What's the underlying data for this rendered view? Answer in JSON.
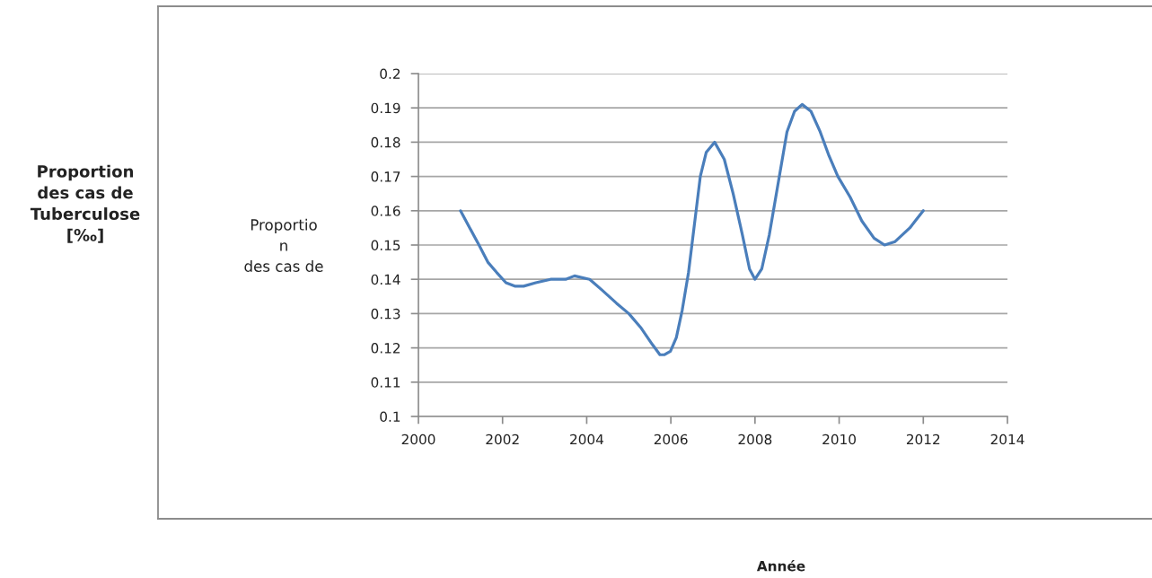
{
  "chart_data": {
    "type": "line",
    "ylabel": "Proportio\nn\ndes cas de",
    "annotations": [
      "Proportion\ndes cas de\nTuberculose\n[‰]",
      "Année"
    ],
    "series": [
      {
        "color": "#4a7ebb",
        "x": [
          2001.0,
          2001.22,
          2001.44,
          2001.65,
          2001.86,
          2002.08,
          2002.29,
          2002.5,
          2002.79,
          2003.14,
          2003.5,
          2003.71,
          2004.07,
          2004.35,
          2004.71,
          2005.0,
          2005.28,
          2005.56,
          2005.74,
          2005.85,
          2005.99,
          2006.13,
          2006.27,
          2006.42,
          2006.56,
          2006.7,
          2006.84,
          2007.04,
          2007.27,
          2007.48,
          2007.7,
          2007.87,
          2008.0,
          2008.16,
          2008.34,
          2008.55,
          2008.76,
          2008.94,
          2009.12,
          2009.33,
          2009.55,
          2009.76,
          2009.97,
          2010.26,
          2010.54,
          2010.83,
          2011.08,
          2011.33,
          2011.68,
          2012.0
        ],
        "values": [
          0.16,
          0.155,
          0.15,
          0.145,
          0.142,
          0.139,
          0.138,
          0.138,
          0.139,
          0.14,
          0.14,
          0.141,
          0.14,
          0.137,
          0.133,
          0.13,
          0.126,
          0.121,
          0.118,
          0.118,
          0.119,
          0.123,
          0.131,
          0.142,
          0.156,
          0.17,
          0.177,
          0.18,
          0.175,
          0.165,
          0.153,
          0.143,
          0.14,
          0.143,
          0.153,
          0.168,
          0.183,
          0.189,
          0.191,
          0.189,
          0.183,
          0.176,
          0.17,
          0.164,
          0.157,
          0.152,
          0.15,
          0.151,
          0.155,
          0.16
        ]
      }
    ],
    "xlim": [
      2000,
      2014
    ],
    "xticks": [
      2000,
      2002,
      2004,
      2006,
      2008,
      2010,
      2012,
      2014
    ],
    "ylim": [
      0.1,
      0.2
    ],
    "yticks": [
      0.1,
      0.11,
      0.12,
      0.13,
      0.14,
      0.15,
      0.16,
      0.17,
      0.18,
      0.19,
      0.2
    ],
    "grid": "y",
    "marker": "none",
    "line_style": "solid"
  }
}
